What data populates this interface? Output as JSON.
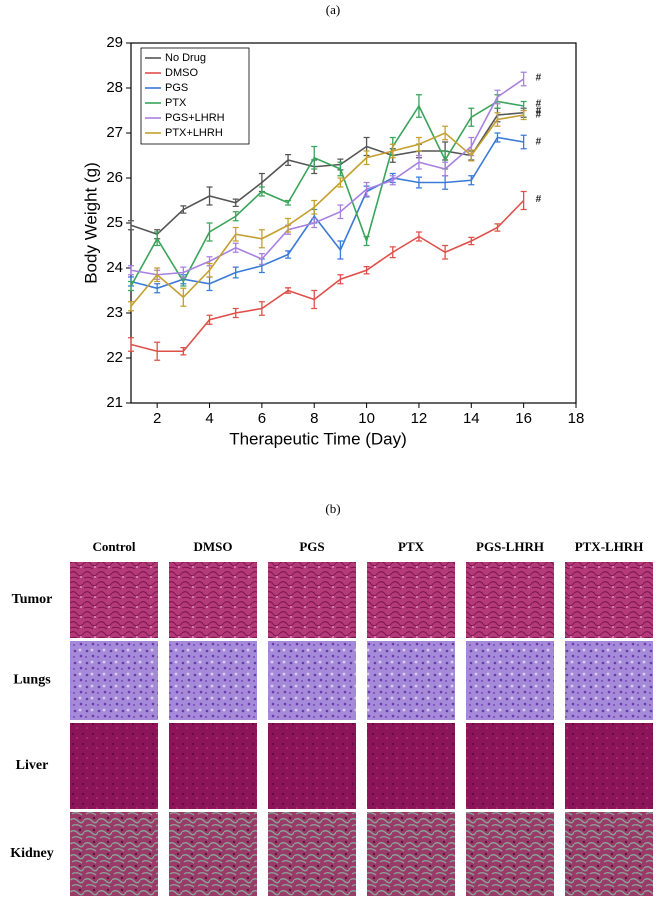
{
  "chart_data": {
    "type": "line",
    "label": "(a)",
    "x_label": "Therapeutic Time (Day)",
    "y_label": "Body Weight (g)",
    "x": [
      1,
      2,
      3,
      4,
      5,
      6,
      7,
      8,
      9,
      10,
      11,
      12,
      13,
      14,
      15,
      16
    ],
    "xlim": [
      1,
      18
    ],
    "xticks": [
      2,
      4,
      6,
      8,
      10,
      12,
      14,
      16,
      18
    ],
    "ylim": [
      21,
      29
    ],
    "yticks": [
      21,
      22,
      23,
      24,
      25,
      26,
      27,
      28,
      29
    ],
    "legend": "upper left",
    "series": [
      {
        "name": "No Drug",
        "color": "#555555",
        "annotation": "#",
        "values": [
          24.95,
          24.75,
          25.3,
          25.6,
          25.45,
          25.9,
          26.4,
          26.25,
          26.3,
          26.7,
          26.5,
          26.6,
          26.6,
          26.5,
          27.4,
          27.45
        ],
        "errors": [
          0.1,
          0.1,
          0.08,
          0.2,
          0.08,
          0.2,
          0.12,
          0.15,
          0.12,
          0.2,
          0.15,
          0.15,
          0.2,
          0.1,
          0.15,
          0.1
        ]
      },
      {
        "name": "DMSO",
        "color": "#e0504a",
        "annotation": "#",
        "values": [
          22.3,
          22.15,
          22.15,
          22.85,
          23.0,
          23.1,
          23.5,
          23.3,
          23.75,
          23.95,
          24.35,
          24.7,
          24.35,
          24.6,
          24.9,
          25.5
        ],
        "errors": [
          0.15,
          0.2,
          0.08,
          0.1,
          0.1,
          0.15,
          0.06,
          0.2,
          0.1,
          0.08,
          0.12,
          0.1,
          0.15,
          0.08,
          0.08,
          0.2
        ]
      },
      {
        "name": "PGS",
        "color": "#3a7ad8",
        "annotation": "#",
        "values": [
          23.7,
          23.55,
          23.75,
          23.65,
          23.9,
          24.05,
          24.3,
          25.15,
          24.4,
          25.7,
          26.0,
          25.9,
          25.9,
          25.95,
          26.9,
          26.8
        ],
        "errors": [
          0.1,
          0.1,
          0.1,
          0.15,
          0.12,
          0.15,
          0.08,
          0.15,
          0.2,
          0.12,
          0.1,
          0.12,
          0.15,
          0.1,
          0.1,
          0.15
        ]
      },
      {
        "name": "PTX",
        "color": "#3aa45a",
        "annotation": "#",
        "values": [
          23.6,
          24.65,
          23.7,
          24.8,
          25.15,
          25.7,
          25.45,
          26.45,
          26.2,
          24.6,
          26.7,
          27.6,
          26.4,
          27.35,
          27.7,
          27.6
        ],
        "errors": [
          0.1,
          0.15,
          0.1,
          0.2,
          0.1,
          0.1,
          0.05,
          0.25,
          0.15,
          0.1,
          0.2,
          0.25,
          0.2,
          0.2,
          0.15,
          0.1
        ]
      },
      {
        "name": "PGS+LHRH",
        "color": "#a880e0",
        "annotation": "#",
        "values": [
          23.95,
          23.85,
          23.9,
          24.15,
          24.45,
          24.2,
          24.85,
          25.0,
          25.25,
          25.75,
          25.95,
          26.35,
          26.2,
          26.7,
          27.8,
          28.2
        ],
        "errors": [
          0.1,
          0.1,
          0.12,
          0.1,
          0.1,
          0.12,
          0.1,
          0.1,
          0.15,
          0.15,
          0.1,
          0.15,
          0.15,
          0.2,
          0.15,
          0.15
        ]
      },
      {
        "name": "PTX+LHRH",
        "color": "#c4a030",
        "annotation": "#",
        "values": [
          23.15,
          23.85,
          23.35,
          23.95,
          24.75,
          24.65,
          24.95,
          25.35,
          25.9,
          26.45,
          26.6,
          26.75,
          27.0,
          26.5,
          27.3,
          27.4
        ],
        "errors": [
          0.1,
          0.15,
          0.2,
          0.15,
          0.15,
          0.2,
          0.15,
          0.15,
          0.1,
          0.15,
          0.15,
          0.15,
          0.15,
          0.12,
          0.15,
          0.1
        ]
      }
    ]
  },
  "panel_b": {
    "label": "(b)",
    "columns": [
      "Control",
      "DMSO",
      "PGS",
      "PTX",
      "PGS-LHRH",
      "PTX-LHRH"
    ],
    "rows": [
      "Tumor",
      "Lungs",
      "Liver",
      "Kidney"
    ]
  }
}
